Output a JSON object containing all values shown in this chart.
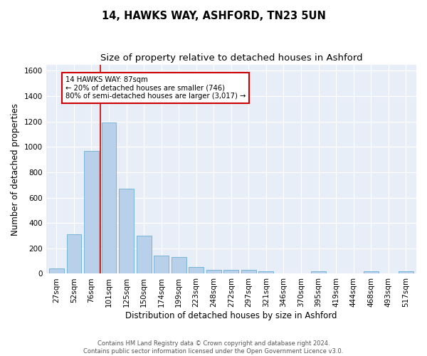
{
  "title": "14, HAWKS WAY, ASHFORD, TN23 5UN",
  "subtitle": "Size of property relative to detached houses in Ashford",
  "xlabel": "Distribution of detached houses by size in Ashford",
  "ylabel": "Number of detached properties",
  "categories": [
    "27sqm",
    "52sqm",
    "76sqm",
    "101sqm",
    "125sqm",
    "150sqm",
    "174sqm",
    "199sqm",
    "223sqm",
    "248sqm",
    "272sqm",
    "297sqm",
    "321sqm",
    "346sqm",
    "370sqm",
    "395sqm",
    "419sqm",
    "444sqm",
    "468sqm",
    "493sqm",
    "517sqm"
  ],
  "values": [
    40,
    310,
    970,
    1190,
    670,
    300,
    145,
    130,
    55,
    30,
    30,
    30,
    20,
    0,
    0,
    20,
    0,
    0,
    20,
    0,
    20
  ],
  "bar_color": "#b8d0ea",
  "bar_edge_color": "#6aaed6",
  "bar_width": 0.85,
  "ylim": [
    0,
    1650
  ],
  "yticks": [
    0,
    200,
    400,
    600,
    800,
    1000,
    1200,
    1400,
    1600
  ],
  "property_line_x": 2.52,
  "property_line_color": "#cc0000",
  "annotation_text": "14 HAWKS WAY: 87sqm\n← 20% of detached houses are smaller (746)\n80% of semi-detached houses are larger (3,017) →",
  "annotation_box_color": "#cc0000",
  "background_color": "#e8eef8",
  "grid_color": "#ffffff",
  "footer": "Contains HM Land Registry data © Crown copyright and database right 2024.\nContains public sector information licensed under the Open Government Licence v3.0.",
  "title_fontsize": 10.5,
  "subtitle_fontsize": 9.5,
  "xlabel_fontsize": 8.5,
  "ylabel_fontsize": 8.5,
  "tick_fontsize": 7.5,
  "footer_fontsize": 6.0
}
